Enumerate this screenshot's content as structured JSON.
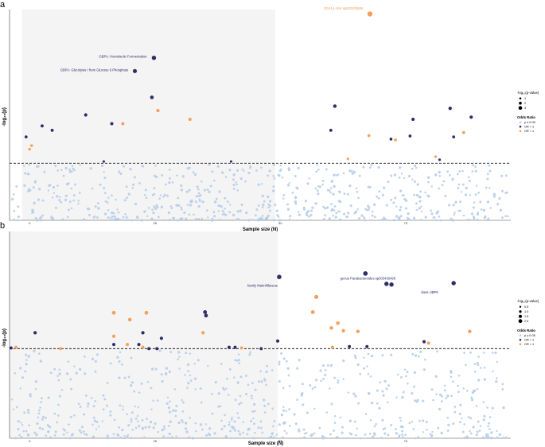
{
  "colors": {
    "nonsig": "#b7cde8",
    "or_gt1": "#2e2d68",
    "or_lt1": "#f5a05a",
    "band": "#f4f4f4",
    "threshold": "#000000"
  },
  "chart_data": [
    {
      "type": "scatter",
      "panel": "a",
      "xlabel": "Sample size (N)",
      "ylabel": "-log₁₀(p)",
      "xlim": [
        0,
        100
      ],
      "ylim": [
        0,
        4.8
      ],
      "threshold": 1.3,
      "x_tick_labels": [
        "0",
        "25",
        "50",
        "75"
      ],
      "shaded_band": [
        2.5,
        53
      ],
      "legend": {
        "size_title": "-log₁₀(p-value)",
        "size_items": [
          {
            "label": "1",
            "value": 1
          },
          {
            "label": "2",
            "value": 2
          },
          {
            "label": "3",
            "value": 3
          }
        ],
        "color_title": "Odds Ratio",
        "color_items": [
          {
            "label": "p ≥ 0.05",
            "key": "nonsig"
          },
          {
            "label": "OR > 1",
            "key": "or_gt1"
          },
          {
            "label": "OR < 1",
            "key": "or_lt1"
          }
        ]
      },
      "annotations": [
        {
          "text": "GBPA: Homolactic Fermentation",
          "x": 27.4,
          "y": 3.7,
          "color": "or_gt1",
          "anchor": "end"
        },
        {
          "text": "GBPA: Glycolysis I from Glucose 6 Phosphate",
          "x": 23.7,
          "y": 3.4,
          "color": "or_gt1",
          "anchor": "end"
        },
        {
          "text": "OD414 ASV sp002305595",
          "x": 70.5,
          "y": 4.8,
          "color": "or_lt1",
          "anchor": "end"
        }
      ],
      "sig_points": [
        {
          "x": 25.0,
          "y": 3.4,
          "or": "gt1"
        },
        {
          "x": 28.8,
          "y": 3.7,
          "or": "gt1"
        },
        {
          "x": 71.9,
          "y": 4.7,
          "or": "or_lt1"
        },
        {
          "x": 28.4,
          "y": 2.8,
          "or": "gt1"
        },
        {
          "x": 29.6,
          "y": 2.5,
          "or": "lt1"
        },
        {
          "x": 36.0,
          "y": 2.3,
          "or": "lt1"
        },
        {
          "x": 15.2,
          "y": 2.4,
          "or": "gt1"
        },
        {
          "x": 20.4,
          "y": 2.2,
          "or": "gt1"
        },
        {
          "x": 22.6,
          "y": 2.2,
          "or": "lt1"
        },
        {
          "x": 3.3,
          "y": 1.9,
          "or": "gt1"
        },
        {
          "x": 6.5,
          "y": 2.15,
          "or": "gt1"
        },
        {
          "x": 8.5,
          "y": 2.05,
          "or": "gt1"
        },
        {
          "x": 4.4,
          "y": 1.7,
          "or": "lt1"
        },
        {
          "x": 4.0,
          "y": 1.62,
          "or": "lt1"
        },
        {
          "x": 18.8,
          "y": 1.34,
          "or": "gt1"
        },
        {
          "x": 44.2,
          "y": 1.34,
          "or": "gt1"
        },
        {
          "x": 64.9,
          "y": 2.6,
          "or": "gt1"
        },
        {
          "x": 64.1,
          "y": 2.05,
          "or": "gt1"
        },
        {
          "x": 67.5,
          "y": 1.4,
          "or": "lt1"
        },
        {
          "x": 71.7,
          "y": 1.93,
          "or": "lt1"
        },
        {
          "x": 76.1,
          "y": 1.85,
          "or": "gt1"
        },
        {
          "x": 77.0,
          "y": 1.83,
          "or": "lt1"
        },
        {
          "x": 80.5,
          "y": 2.3,
          "or": "gt1"
        },
        {
          "x": 79.9,
          "y": 1.92,
          "or": "gt1"
        },
        {
          "x": 85.0,
          "y": 1.45,
          "or": "lt1"
        },
        {
          "x": 85.8,
          "y": 1.38,
          "or": "gt1"
        },
        {
          "x": 87.9,
          "y": 2.55,
          "or": "gt1"
        },
        {
          "x": 88.6,
          "y": 1.9,
          "or": "gt1"
        },
        {
          "x": 90.6,
          "y": 2.0,
          "or": "lt1"
        },
        {
          "x": 92.1,
          "y": 2.35,
          "or": "gt1"
        }
      ]
    },
    {
      "type": "scatter",
      "panel": "b",
      "xlabel": "Sample size (N)",
      "ylabel": "-log₁₀(p)",
      "xlim": [
        0,
        100
      ],
      "ylim": [
        0,
        3.0
      ],
      "threshold": 1.3,
      "x_tick_labels": [
        "0",
        "25",
        "50",
        "75"
      ],
      "shaded_band": [
        0,
        53.5
      ],
      "legend": {
        "size_title": "-log₁₀(p-value)",
        "size_items": [
          {
            "label": "0.5",
            "value": 0.5
          },
          {
            "label": "1.0",
            "value": 1.0
          },
          {
            "label": "1.5",
            "value": 1.5
          },
          {
            "label": "2.0",
            "value": 2.0
          }
        ],
        "color_title": "Odds Ratio",
        "color_items": [
          {
            "label": "p ≥ 0.05",
            "key": "nonsig"
          },
          {
            "label": "OR > 1",
            "key": "or_gt1"
          },
          {
            "label": "OR < 1",
            "key": "or_lt1"
          }
        ]
      },
      "annotations": [
        {
          "text": "family Marinifilaceae",
          "x": 53.5,
          "y": 2.2,
          "color": "or_gt1",
          "anchor": "end"
        },
        {
          "text": "genus Parabacteroides sp003436495",
          "x": 77.0,
          "y": 2.3,
          "color": "or_gt1",
          "anchor": "end"
        },
        {
          "text": "class UBP9",
          "x": 85.5,
          "y": 2.1,
          "color": "or_gt1",
          "anchor": "end"
        }
      ],
      "sig_points": [
        {
          "x": 53.8,
          "y": 2.34,
          "or": "gt1"
        },
        {
          "x": 71.0,
          "y": 2.39,
          "or": "gt1"
        },
        {
          "x": 75.2,
          "y": 2.24,
          "or": "gt1"
        },
        {
          "x": 76.2,
          "y": 2.23,
          "or": "gt1"
        },
        {
          "x": 88.6,
          "y": 2.25,
          "or": "gt1"
        },
        {
          "x": 39.0,
          "y": 1.83,
          "or": "gt1"
        },
        {
          "x": 39.2,
          "y": 1.78,
          "or": "gt1"
        },
        {
          "x": 61.2,
          "y": 2.05,
          "or": "lt1"
        },
        {
          "x": 60.5,
          "y": 1.83,
          "or": "lt1"
        },
        {
          "x": 65.5,
          "y": 1.67,
          "or": "lt1"
        },
        {
          "x": 66.6,
          "y": 1.56,
          "or": "lt1"
        },
        {
          "x": 64.2,
          "y": 1.6,
          "or": "lt1"
        },
        {
          "x": 69.5,
          "y": 1.55,
          "or": "lt1"
        },
        {
          "x": 20.8,
          "y": 1.82,
          "or": "lt1"
        },
        {
          "x": 24.0,
          "y": 1.72,
          "or": "lt1"
        },
        {
          "x": 27.3,
          "y": 1.82,
          "or": "lt1"
        },
        {
          "x": 26.6,
          "y": 1.53,
          "or": "gt1"
        },
        {
          "x": 20.8,
          "y": 1.48,
          "or": "lt1"
        },
        {
          "x": 5.1,
          "y": 1.53,
          "or": "gt1"
        },
        {
          "x": 30.3,
          "y": 1.45,
          "or": "gt1"
        },
        {
          "x": 38.6,
          "y": 1.53,
          "or": "lt1"
        },
        {
          "x": 91.8,
          "y": 1.55,
          "or": "lt1"
        },
        {
          "x": 20.8,
          "y": 1.36,
          "or": "gt1"
        },
        {
          "x": 23.5,
          "y": 1.36,
          "or": "lt1"
        },
        {
          "x": 25.8,
          "y": 1.36,
          "or": "gt1"
        },
        {
          "x": 26.6,
          "y": 1.32,
          "or": "lt1"
        },
        {
          "x": 27.8,
          "y": 1.3,
          "or": "gt1"
        },
        {
          "x": 29.4,
          "y": 1.3,
          "or": "gt1"
        },
        {
          "x": 43.8,
          "y": 1.32,
          "or": "gt1"
        },
        {
          "x": 45.0,
          "y": 1.32,
          "or": "gt1"
        },
        {
          "x": 46.3,
          "y": 1.31,
          "or": "lt1"
        },
        {
          "x": 50.2,
          "y": 1.3,
          "or": "gt1"
        },
        {
          "x": 53.5,
          "y": 1.41,
          "or": "gt1"
        },
        {
          "x": 64.4,
          "y": 1.32,
          "or": "lt1"
        },
        {
          "x": 67.8,
          "y": 1.33,
          "or": "gt1"
        },
        {
          "x": 71.3,
          "y": 1.33,
          "or": "gt1"
        },
        {
          "x": 82.7,
          "y": 1.4,
          "or": "gt1"
        },
        {
          "x": 83.6,
          "y": 1.38,
          "or": "lt1"
        },
        {
          "x": 10.2,
          "y": 1.3,
          "or": "lt1"
        },
        {
          "x": 1.3,
          "y": 1.32,
          "or": "lt1"
        },
        {
          "x": 0.3,
          "y": 1.31,
          "or": "gt1"
        }
      ]
    }
  ]
}
